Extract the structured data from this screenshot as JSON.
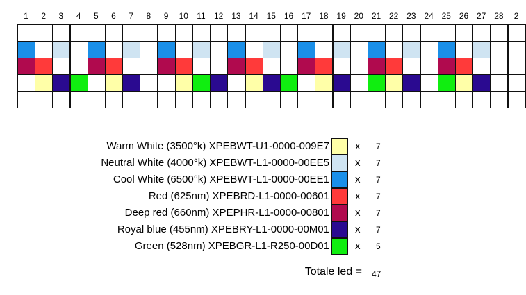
{
  "column_numbers": [
    "1",
    "2",
    "3",
    "4",
    "5",
    "6",
    "7",
    "8",
    "9",
    "10",
    "11",
    "12",
    "13",
    "14",
    "15",
    "16",
    "17",
    "18",
    "19",
    "20",
    "21",
    "22",
    "23",
    "24",
    "25",
    "26",
    "27",
    "28",
    "2"
  ],
  "colors": {
    "W": "#ffffa8",
    "N": "#cfe4f2",
    "C": "#1a8fe8",
    "R": "#ff3a3a",
    "D": "#b00a4e",
    "B": "#2a0a90",
    "G": "#10ee10",
    "E": "#ffffff"
  },
  "grid": {
    "rows": [
      "EEEEEEEEEEEEEEEEEEEEEEEEEEEEE",
      "CENECENECENECENECENECENECENEE",
      "DREEDREEDREEDREEDREEDREEDREEE",
      "EWBGEWBEEWGBEWBGEWBEGWBEGWBEE",
      "EEEEEEEEEEEEEEEEEEEEEEEEEEEEE"
    ]
  },
  "legend": [
    {
      "label": "Warm White (3500°k) XPEBWT-U1-0000-009E7",
      "color_key": "W",
      "x": "x",
      "count": "7"
    },
    {
      "label": "Neutral White (4000°k) XPEBWT-L1-0000-00EE5",
      "color_key": "N",
      "x": "x",
      "count": "7"
    },
    {
      "label": "Cool White (6500°k) XPEBWT-L1-0000-00EE1",
      "color_key": "C",
      "x": "x",
      "count": "7"
    },
    {
      "label": "Red (625nm) XPEBRD-L1-0000-00601",
      "color_key": "R",
      "x": "x",
      "count": "7"
    },
    {
      "label": "Deep red (660nm) XPEPHR-L1-0000-00801",
      "color_key": "D",
      "x": "x",
      "count": "7"
    },
    {
      "label": "Royal blue (455nm) XPEBRY-L1-0000-00M01",
      "color_key": "B",
      "x": "x",
      "count": "7"
    },
    {
      "label": "Green (528nm) XPEBGR-L1-R250-00D01",
      "color_key": "G",
      "x": "x",
      "count": "5"
    }
  ],
  "total": {
    "label": "Totale led  =",
    "value": "47"
  }
}
